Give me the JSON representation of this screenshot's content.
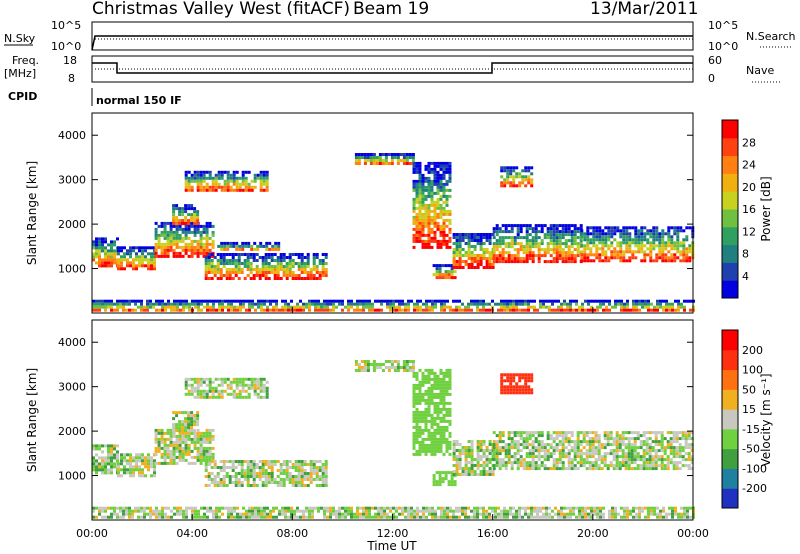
{
  "header": {
    "radar": "Christmas Valley West (fitACF)",
    "beam": "Beam 19",
    "date": "13/Mar/2011"
  },
  "strip": {
    "nsky_label": "N.Sky",
    "nsearch_label": "N.Search",
    "freq_label_1": "Freq.",
    "freq_label_2": "[MHz]",
    "nave_label": "Nave",
    "cpid_label": "CPID",
    "cpid_value": "normal 150 IF",
    "noise_ticks_left": [
      "10^5",
      "10^0"
    ],
    "noise_ticks_right": [
      "10^5",
      "10^0"
    ],
    "freq_ticks": [
      "18",
      "8"
    ],
    "nave_ticks": [
      "60",
      "0"
    ]
  },
  "chart_data": [
    {
      "type": "heatmap",
      "name": "power",
      "ylabel": "Slant Range [km]",
      "yticks": [
        1000,
        2000,
        3000,
        4000
      ],
      "ylim": [
        0,
        4500
      ],
      "xlim": [
        0,
        24
      ],
      "colorbar": {
        "label": "Power [dB]",
        "ticks": [
          "28",
          "24",
          "20",
          "16",
          "12",
          "8",
          "4"
        ],
        "colors": [
          "#0000e0",
          "#2040b0",
          "#208080",
          "#30a060",
          "#70c040",
          "#c8d020",
          "#f0b010",
          "#ff8010",
          "#ff4010",
          "#ff0000"
        ]
      },
      "regions": [
        {
          "x0": 0.0,
          "x1": 1.0,
          "y0": 1050,
          "y1": 1700
        },
        {
          "x0": 1.0,
          "x1": 2.5,
          "y0": 1000,
          "y1": 1500
        },
        {
          "x0": 2.5,
          "x1": 4.8,
          "y0": 1300,
          "y1": 2050
        },
        {
          "x0": 3.2,
          "x1": 4.2,
          "y0": 2000,
          "y1": 2450
        },
        {
          "x0": 3.7,
          "x1": 7.0,
          "y0": 2750,
          "y1": 3200
        },
        {
          "x0": 4.5,
          "x1": 9.3,
          "y0": 800,
          "y1": 1350
        },
        {
          "x0": 5.0,
          "x1": 7.5,
          "y0": 1400,
          "y1": 1600
        },
        {
          "x0": 10.5,
          "x1": 12.8,
          "y0": 3350,
          "y1": 3600
        },
        {
          "x0": 12.8,
          "x1": 14.3,
          "y0": 1500,
          "y1": 3400
        },
        {
          "x0": 13.6,
          "x1": 14.5,
          "y0": 800,
          "y1": 1100
        },
        {
          "x0": 14.4,
          "x1": 16.0,
          "y0": 1050,
          "y1": 1800
        },
        {
          "x0": 16.0,
          "x1": 19.5,
          "y0": 1150,
          "y1": 2000
        },
        {
          "x0": 19.5,
          "x1": 24.0,
          "y0": 1150,
          "y1": 1950
        },
        {
          "x0": 16.3,
          "x1": 17.5,
          "y0": 2850,
          "y1": 3300
        },
        {
          "x0": 0.0,
          "x1": 24.0,
          "y0": 50,
          "y1": 300
        }
      ]
    },
    {
      "type": "heatmap",
      "name": "velocity",
      "ylabel": "Slant Range [km]",
      "xlabel": "Time UT",
      "xticks": [
        "00:00",
        "04:00",
        "08:00",
        "12:00",
        "16:00",
        "20:00",
        "00:00"
      ],
      "yticks": [
        1000,
        2000,
        3000,
        4000
      ],
      "ylim": [
        0,
        4500
      ],
      "xlim": [
        0,
        24
      ],
      "colorbar": {
        "label": "Velocity [m s⁻¹]",
        "ticks": [
          "200",
          "100",
          "50",
          "15",
          "-15",
          "-50",
          "-100",
          "-200"
        ],
        "colors": [
          "#2030c0",
          "#2080a0",
          "#40a040",
          "#70d040",
          "#c8c8c0",
          "#f0b020",
          "#ff7010",
          "#ff3010",
          "#ff0000"
        ]
      },
      "regions": [
        {
          "x0": 0.0,
          "x1": 1.0,
          "y0": 1050,
          "y1": 1700
        },
        {
          "x0": 1.0,
          "x1": 2.5,
          "y0": 1000,
          "y1": 1500
        },
        {
          "x0": 2.5,
          "x1": 4.8,
          "y0": 1300,
          "y1": 2050
        },
        {
          "x0": 3.2,
          "x1": 4.2,
          "y0": 2000,
          "y1": 2450
        },
        {
          "x0": 3.7,
          "x1": 7.0,
          "y0": 2750,
          "y1": 3200
        },
        {
          "x0": 4.5,
          "x1": 9.3,
          "y0": 800,
          "y1": 1350
        },
        {
          "x0": 10.5,
          "x1": 12.8,
          "y0": 3350,
          "y1": 3600
        },
        {
          "x0": 12.8,
          "x1": 14.3,
          "y0": 1500,
          "y1": 3400
        },
        {
          "x0": 13.6,
          "x1": 14.5,
          "y0": 800,
          "y1": 1100
        },
        {
          "x0": 14.4,
          "x1": 16.0,
          "y0": 1050,
          "y1": 1800
        },
        {
          "x0": 16.0,
          "x1": 24.0,
          "y0": 1150,
          "y1": 2000
        },
        {
          "x0": 16.3,
          "x1": 17.5,
          "y0": 2850,
          "y1": 3300
        },
        {
          "x0": 0.0,
          "x1": 24.0,
          "y0": 50,
          "y1": 300
        }
      ]
    }
  ]
}
